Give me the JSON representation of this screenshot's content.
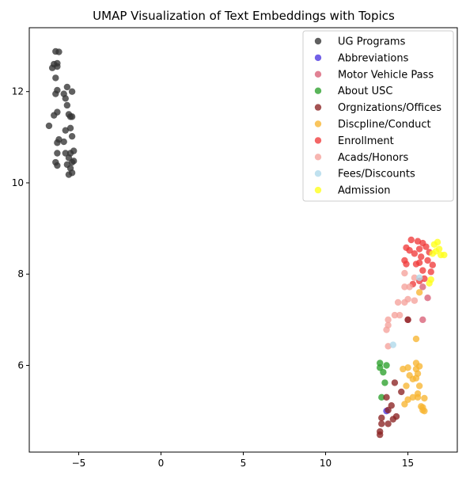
{
  "chart_data": {
    "type": "scatter",
    "title": "UMAP Visualization of Text Embeddings with Topics",
    "xlabel": "",
    "ylabel": "",
    "xlim": [
      -8.0,
      18.0
    ],
    "ylim": [
      4.1,
      13.4
    ],
    "xticks": [
      -5,
      0,
      5,
      10,
      15
    ],
    "yticks": [
      6,
      8,
      10,
      12
    ],
    "grid": false,
    "legend_position": "top-right",
    "series": [
      {
        "name": "UG Programs",
        "color": "#333333",
        "points": [
          [
            -6.4,
            12.88
          ],
          [
            -6.2,
            12.87
          ],
          [
            -6.3,
            12.62
          ],
          [
            -6.5,
            12.6
          ],
          [
            -6.6,
            12.52
          ],
          [
            -6.3,
            12.55
          ],
          [
            -6.4,
            12.3
          ],
          [
            -6.3,
            12.03
          ],
          [
            -6.4,
            11.95
          ],
          [
            -5.7,
            12.1
          ],
          [
            -5.4,
            12.0
          ],
          [
            -5.9,
            11.95
          ],
          [
            -5.8,
            11.85
          ],
          [
            -5.7,
            11.7
          ],
          [
            -6.3,
            11.55
          ],
          [
            -6.5,
            11.48
          ],
          [
            -5.6,
            11.5
          ],
          [
            -5.5,
            11.45
          ],
          [
            -5.4,
            11.45
          ],
          [
            -6.8,
            11.25
          ],
          [
            -5.8,
            11.15
          ],
          [
            -5.5,
            11.2
          ],
          [
            -6.2,
            10.95
          ],
          [
            -6.3,
            10.88
          ],
          [
            -5.9,
            10.9
          ],
          [
            -5.4,
            11.02
          ],
          [
            -5.3,
            10.7
          ],
          [
            -6.3,
            10.65
          ],
          [
            -5.8,
            10.65
          ],
          [
            -5.5,
            10.65
          ],
          [
            -5.6,
            10.55
          ],
          [
            -5.4,
            10.45
          ],
          [
            -5.3,
            10.48
          ],
          [
            -6.4,
            10.45
          ],
          [
            -6.3,
            10.38
          ],
          [
            -5.7,
            10.4
          ],
          [
            -5.5,
            10.32
          ],
          [
            -5.4,
            10.22
          ],
          [
            -5.6,
            10.18
          ]
        ]
      },
      {
        "name": "Abbreviations",
        "color": "#4b35e0",
        "points": [
          [
            13.7,
            5.0
          ]
        ]
      },
      {
        "name": "Motor Vehicle Pass",
        "color": "#d95f76",
        "points": [
          [
            16.2,
            7.48
          ],
          [
            15.9,
            7.0
          ],
          [
            15.9,
            7.72
          ],
          [
            15.0,
            7.0
          ]
        ]
      },
      {
        "name": "About USC",
        "color": "#2ca02c",
        "points": [
          [
            13.3,
            6.05
          ],
          [
            13.3,
            5.95
          ],
          [
            13.7,
            6.0
          ],
          [
            13.5,
            5.85
          ],
          [
            13.6,
            5.62
          ],
          [
            13.4,
            5.3
          ]
        ]
      },
      {
        "name": "Orgnizations/Offices",
        "color": "#8b2323",
        "points": [
          [
            14.2,
            5.62
          ],
          [
            14.6,
            5.42
          ],
          [
            13.7,
            5.3
          ],
          [
            14.0,
            5.12
          ],
          [
            13.8,
            5.02
          ],
          [
            14.3,
            4.88
          ],
          [
            14.1,
            4.82
          ],
          [
            13.8,
            4.72
          ],
          [
            13.4,
            4.85
          ],
          [
            13.4,
            4.72
          ],
          [
            13.3,
            4.55
          ],
          [
            13.3,
            4.48
          ],
          [
            15.0,
            7.0
          ]
        ]
      },
      {
        "name": "Discpline/Conduct",
        "color": "#f7b531",
        "points": [
          [
            15.5,
            6.58
          ],
          [
            15.5,
            6.05
          ],
          [
            15.7,
            5.98
          ],
          [
            15.5,
            5.92
          ],
          [
            15.0,
            5.95
          ],
          [
            14.7,
            5.92
          ],
          [
            15.6,
            5.82
          ],
          [
            15.1,
            5.78
          ],
          [
            15.3,
            5.7
          ],
          [
            14.9,
            5.55
          ],
          [
            15.5,
            5.72
          ],
          [
            15.7,
            5.55
          ],
          [
            15.6,
            5.38
          ],
          [
            15.3,
            5.3
          ],
          [
            15.0,
            5.25
          ],
          [
            15.6,
            5.3
          ],
          [
            16.0,
            5.28
          ],
          [
            14.8,
            5.15
          ],
          [
            15.9,
            5.08
          ],
          [
            15.9,
            5.02
          ],
          [
            16.0,
            5.0
          ],
          [
            15.8,
            5.1
          ],
          [
            15.7,
            7.6
          ]
        ]
      },
      {
        "name": "Enrollment",
        "color": "#f03b3b",
        "points": [
          [
            15.2,
            8.75
          ],
          [
            15.6,
            8.72
          ],
          [
            15.9,
            8.68
          ],
          [
            14.9,
            8.58
          ],
          [
            15.1,
            8.52
          ],
          [
            15.7,
            8.55
          ],
          [
            16.1,
            8.6
          ],
          [
            15.4,
            8.45
          ],
          [
            15.8,
            8.38
          ],
          [
            16.3,
            8.48
          ],
          [
            14.8,
            8.3
          ],
          [
            14.9,
            8.22
          ],
          [
            15.5,
            8.22
          ],
          [
            15.7,
            8.25
          ],
          [
            16.2,
            8.3
          ],
          [
            16.5,
            8.2
          ],
          [
            16.4,
            8.05
          ],
          [
            16.0,
            7.9
          ],
          [
            15.7,
            7.85
          ],
          [
            15.3,
            7.78
          ],
          [
            15.9,
            8.08
          ]
        ]
      },
      {
        "name": "Acads/Honors",
        "color": "#f5a19b",
        "points": [
          [
            14.8,
            8.02
          ],
          [
            15.4,
            7.92
          ],
          [
            14.8,
            7.72
          ],
          [
            15.1,
            7.72
          ],
          [
            15.4,
            7.42
          ],
          [
            15.0,
            7.45
          ],
          [
            14.8,
            7.38
          ],
          [
            14.4,
            7.38
          ],
          [
            14.2,
            7.1
          ],
          [
            14.5,
            7.1
          ],
          [
            13.8,
            7.0
          ],
          [
            13.8,
            6.88
          ],
          [
            13.7,
            6.78
          ],
          [
            13.8,
            6.42
          ]
        ]
      },
      {
        "name": "Fees/Discounts",
        "color": "#aed8eb",
        "points": [
          [
            14.1,
            6.45
          ],
          [
            15.7,
            7.92
          ]
        ]
      },
      {
        "name": "Admission",
        "color": "#ffff1a",
        "points": [
          [
            16.8,
            8.7
          ],
          [
            16.6,
            8.65
          ],
          [
            16.9,
            8.55
          ],
          [
            16.7,
            8.5
          ],
          [
            16.5,
            8.45
          ],
          [
            17.0,
            8.42
          ],
          [
            17.2,
            8.42
          ],
          [
            16.4,
            7.88
          ],
          [
            16.3,
            7.8
          ]
        ]
      }
    ]
  }
}
